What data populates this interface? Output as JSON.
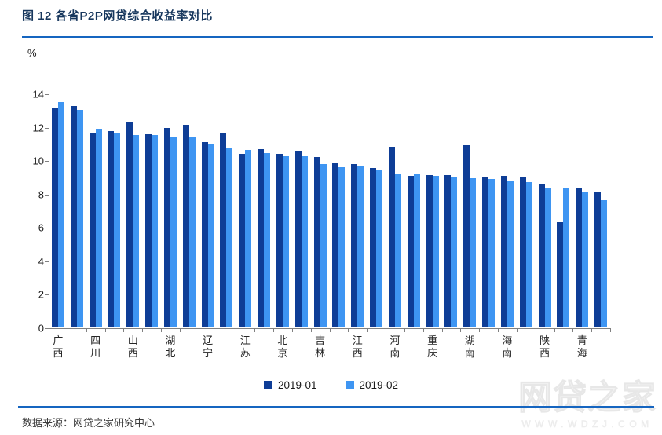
{
  "header": {
    "title": "图 12 各省P2P网贷综合收益率对比"
  },
  "y_axis": {
    "unit_label": "%"
  },
  "legend": {
    "items": [
      {
        "label": "2019-01",
        "color": "#0E3D96"
      },
      {
        "label": "2019-02",
        "color": "#3E95F2"
      }
    ]
  },
  "footer": {
    "source": "数据来源：网贷之家研究中心"
  },
  "watermark": {
    "text": "网贷之家",
    "subtext": "WWW.WDZJ.COM"
  },
  "colors": {
    "series1": "#0E3D96",
    "series2": "#3E95F2",
    "rule": "#1565C0",
    "axis": "#808080"
  },
  "chart_data": {
    "type": "bar",
    "title": "图 12 各省P2P网贷综合收益率对比",
    "xlabel": "",
    "ylabel": "%",
    "ylim": [
      0,
      14
    ],
    "yticks": [
      0,
      2,
      4,
      6,
      8,
      10,
      12,
      14
    ],
    "grid": false,
    "legend_position": "bottom",
    "note": "30 bar groups; only every other group shows a province label",
    "categories": [
      "广西",
      "",
      "四川",
      "",
      "山西",
      "",
      "湖北",
      "",
      "辽宁",
      "",
      "江苏",
      "",
      "北京",
      "",
      "吉林",
      "",
      "江西",
      "",
      "河南",
      "",
      "重庆",
      "",
      "湖南",
      "",
      "海南",
      "",
      "陕西",
      "",
      "青海",
      ""
    ],
    "series": [
      {
        "name": "2019-01",
        "color": "#0E3D96",
        "values": [
          13.1,
          13.25,
          11.65,
          11.75,
          12.3,
          11.55,
          11.95,
          12.1,
          11.1,
          11.65,
          10.4,
          10.65,
          10.4,
          10.55,
          10.2,
          9.8,
          9.75,
          9.55,
          10.8,
          9.05,
          9.1,
          9.1,
          10.9,
          9.0,
          9.05,
          9.0,
          8.6,
          6.3,
          8.35,
          8.15
        ]
      },
      {
        "name": "2019-02",
        "color": "#3E95F2",
        "values": [
          13.5,
          13.0,
          11.9,
          11.6,
          11.5,
          11.5,
          11.35,
          11.35,
          10.95,
          10.75,
          10.6,
          10.45,
          10.25,
          10.25,
          9.75,
          9.6,
          9.65,
          9.45,
          9.2,
          9.15,
          9.05,
          9.0,
          8.95,
          8.9,
          8.75,
          8.7,
          8.35,
          8.3,
          8.1,
          7.6
        ]
      }
    ]
  }
}
